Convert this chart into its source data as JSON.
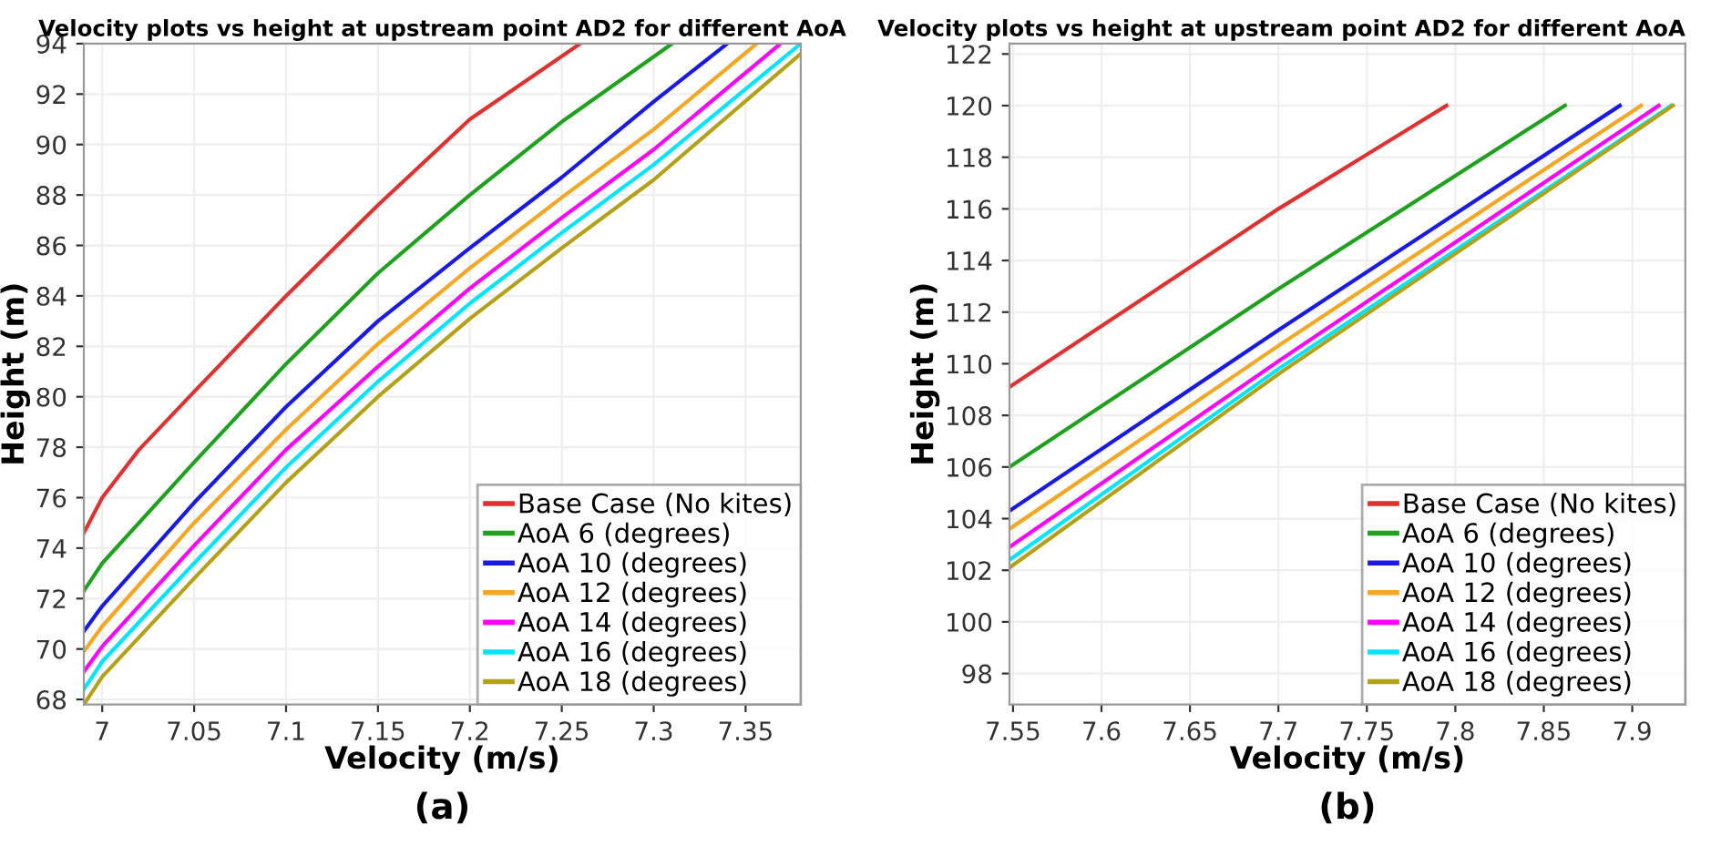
{
  "chart_data": [
    {
      "type": "line",
      "title": "Velocity plots vs height at upstream point AD2 for different AoA",
      "xlabel": "Velocity (m/s)",
      "ylabel": "Height (m)",
      "annotations": [
        "(a)"
      ],
      "xlim": [
        6.99,
        7.38
      ],
      "ylim": [
        67.8,
        94
      ],
      "xticks": [
        7,
        7.05,
        7.1,
        7.15,
        7.2,
        7.25,
        7.3,
        7.35
      ],
      "yticks": [
        68,
        70,
        72,
        74,
        76,
        78,
        80,
        82,
        84,
        86,
        88,
        90,
        92,
        94
      ],
      "grid": true,
      "legend": "bottom right",
      "series": [
        {
          "name": "Base Case (No kites)",
          "color": "#e03131",
          "x": [
            6.99,
            7.0,
            7.02,
            7.05,
            7.1,
            7.15,
            7.2,
            7.26
          ],
          "values": [
            74.6,
            76.0,
            77.9,
            80.2,
            84.0,
            87.6,
            91.0,
            94
          ]
        },
        {
          "name": "AoA 6 (degrees)",
          "color": "#1fa01f",
          "x": [
            6.99,
            7.0,
            7.05,
            7.1,
            7.15,
            7.2,
            7.25,
            7.31
          ],
          "values": [
            72.3,
            73.4,
            77.4,
            81.3,
            84.9,
            88.0,
            90.9,
            94
          ]
        },
        {
          "name": "AoA 10 (degrees)",
          "color": "#1a1ae6",
          "x": [
            6.99,
            7.0,
            7.05,
            7.1,
            7.15,
            7.2,
            7.25,
            7.3,
            7.34
          ],
          "values": [
            70.7,
            71.7,
            75.8,
            79.6,
            83.0,
            85.9,
            88.7,
            91.7,
            94
          ]
        },
        {
          "name": "AoA 12 (degrees)",
          "color": "#f5a623",
          "x": [
            6.99,
            7.0,
            7.05,
            7.1,
            7.15,
            7.2,
            7.25,
            7.3,
            7.356
          ],
          "values": [
            69.9,
            70.9,
            75.0,
            78.7,
            82.1,
            85.1,
            87.9,
            90.6,
            94
          ]
        },
        {
          "name": "AoA 14 (degrees)",
          "color": "#ff00ff",
          "x": [
            6.99,
            7.0,
            7.05,
            7.1,
            7.15,
            7.2,
            7.25,
            7.3,
            7.369
          ],
          "values": [
            69.1,
            70.1,
            74.1,
            77.9,
            81.2,
            84.3,
            87.1,
            89.8,
            94
          ]
        },
        {
          "name": "AoA 16 (degrees)",
          "color": "#00e5ff",
          "x": [
            6.99,
            7.0,
            7.05,
            7.1,
            7.15,
            7.2,
            7.25,
            7.3,
            7.38
          ],
          "values": [
            68.4,
            69.5,
            73.4,
            77.2,
            80.6,
            83.7,
            86.5,
            89.2,
            94
          ]
        },
        {
          "name": "AoA 18 (degrees)",
          "color": "#b5a01a",
          "x": [
            6.99,
            7.0,
            7.05,
            7.1,
            7.15,
            7.2,
            7.25,
            7.3,
            7.38
          ],
          "values": [
            67.8,
            68.9,
            72.8,
            76.6,
            80.0,
            83.1,
            85.9,
            88.6,
            93.6
          ]
        }
      ]
    },
    {
      "type": "line",
      "title": "Velocity plots vs height at upstream point AD2 for different AoA",
      "xlabel": "Velocity (m/s)",
      "ylabel": "Height (m)",
      "annotations": [
        "(b)"
      ],
      "xlim": [
        7.548,
        7.93
      ],
      "ylim": [
        96.8,
        122.4
      ],
      "xticks": [
        7.55,
        7.6,
        7.65,
        7.7,
        7.75,
        7.8,
        7.85,
        7.9
      ],
      "yticks": [
        98,
        100,
        102,
        104,
        106,
        108,
        110,
        112,
        114,
        116,
        118,
        120,
        122
      ],
      "grid": true,
      "legend": "bottom right",
      "series": [
        {
          "name": "Base Case (No kites)",
          "color": "#e03131",
          "x": [
            7.548,
            7.7,
            7.795
          ],
          "values": [
            109.1,
            116.0,
            120
          ]
        },
        {
          "name": "AoA 6 (degrees)",
          "color": "#1fa01f",
          "x": [
            7.548,
            7.7,
            7.862
          ],
          "values": [
            106.0,
            112.9,
            120
          ]
        },
        {
          "name": "AoA 10 (degrees)",
          "color": "#1a1ae6",
          "x": [
            7.548,
            7.7,
            7.893
          ],
          "values": [
            104.3,
            111.3,
            120
          ]
        },
        {
          "name": "AoA 12 (degrees)",
          "color": "#f5a623",
          "x": [
            7.548,
            7.7,
            7.905
          ],
          "values": [
            103.6,
            110.7,
            120
          ]
        },
        {
          "name": "AoA 14 (degrees)",
          "color": "#ff00ff",
          "x": [
            7.548,
            7.7,
            7.915
          ],
          "values": [
            102.9,
            110.1,
            120
          ]
        },
        {
          "name": "AoA 16 (degrees)",
          "color": "#00e5ff",
          "x": [
            7.548,
            7.7,
            7.922
          ],
          "values": [
            102.4,
            109.8,
            120
          ]
        },
        {
          "name": "AoA 18 (degrees)",
          "color": "#b5a01a",
          "x": [
            7.548,
            7.7,
            7.923
          ],
          "values": [
            102.1,
            109.6,
            120
          ]
        }
      ]
    }
  ]
}
